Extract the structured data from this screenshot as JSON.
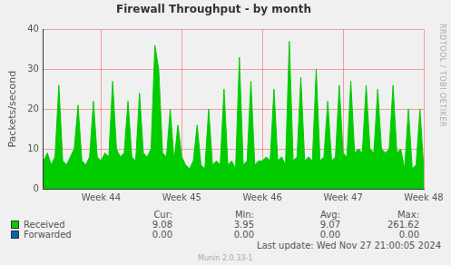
{
  "chart_data": {
    "type": "area",
    "title": "Firewall Throughput - by month",
    "y_label": "Packets/second",
    "watermark": "RRDTOOL / TOBI OETIKER",
    "categories": [
      null,
      null,
      null,
      null,
      null,
      null,
      null,
      null,
      null,
      null,
      null,
      null,
      null,
      null,
      null,
      "Week 44",
      null,
      null,
      null,
      null,
      null,
      null,
      null,
      null,
      null,
      null,
      null,
      null,
      null,
      null,
      null,
      null,
      null,
      null,
      null,
      null,
      "Week 45",
      null,
      null,
      null,
      null,
      null,
      null,
      null,
      null,
      null,
      null,
      null,
      null,
      null,
      null,
      null,
      null,
      null,
      null,
      null,
      null,
      "Week 46",
      null,
      null,
      null,
      null,
      null,
      null,
      null,
      null,
      null,
      null,
      null,
      null,
      null,
      null,
      null,
      null,
      null,
      null,
      null,
      null,
      "Week 47",
      null,
      null,
      null,
      null,
      null,
      null,
      null,
      null,
      null,
      null,
      null,
      null,
      null,
      null,
      null,
      null,
      null,
      null,
      null,
      null,
      "Week 48"
    ],
    "series": [
      {
        "name": "Received",
        "color": "#00cc00",
        "values": [
          7,
          9,
          6,
          8,
          26,
          7,
          6,
          8,
          10,
          21,
          7,
          6,
          8,
          22,
          8,
          7,
          9,
          8,
          27,
          10,
          8,
          9,
          22,
          8,
          7,
          24,
          9,
          8,
          10,
          36,
          30,
          9,
          8,
          20,
          7,
          16,
          8,
          6,
          5,
          7,
          16,
          6,
          5,
          20,
          6,
          7,
          6,
          25,
          6,
          7,
          5,
          33,
          6,
          7,
          27,
          6,
          7,
          7,
          8,
          7,
          25,
          7,
          8,
          6,
          37,
          7,
          8,
          28,
          7,
          8,
          7,
          30,
          7,
          8,
          22,
          7,
          8,
          26,
          9,
          8,
          27,
          9,
          10,
          9,
          26,
          10,
          9,
          25,
          10,
          9,
          10,
          26,
          9,
          10,
          5,
          20,
          5,
          6,
          20,
          5
        ]
      },
      {
        "name": "Forwarded",
        "color": "#0066b3",
        "values": [
          0,
          0,
          0,
          0,
          0,
          0,
          0,
          0,
          0,
          0,
          0,
          0,
          0,
          0,
          0,
          0,
          0,
          0,
          0,
          0,
          0,
          0,
          0,
          0,
          0,
          0,
          0,
          0,
          0,
          0,
          0,
          0,
          0,
          0,
          0,
          0,
          0,
          0,
          0,
          0,
          0,
          0,
          0,
          0,
          0,
          0,
          0,
          0,
          0,
          0,
          0,
          0,
          0,
          0,
          0,
          0,
          0,
          0,
          0,
          0,
          0,
          0,
          0,
          0,
          0,
          0,
          0,
          0,
          0,
          0,
          0,
          0,
          0,
          0,
          0,
          0,
          0,
          0,
          0,
          0,
          0,
          0,
          0,
          0,
          0,
          0,
          0,
          0,
          0,
          0,
          0,
          0,
          0,
          0,
          0,
          0,
          0,
          0,
          0,
          0
        ]
      }
    ],
    "ylim": [
      0,
      40
    ],
    "yticks": [
      0,
      10,
      20,
      30,
      40
    ],
    "grid": true,
    "summary": {
      "headers": [
        "Cur:",
        "Min:",
        "Avg:",
        "Max:"
      ],
      "rows": [
        [
          "9.08",
          "3.95",
          "9.07",
          "261.62"
        ],
        [
          "0.00",
          "0.00",
          "0.00",
          "0.00"
        ]
      ]
    },
    "footer": "Last update: Wed Nov 27 21:00:05 2024",
    "generator": "Munin 2.0.33-1"
  }
}
